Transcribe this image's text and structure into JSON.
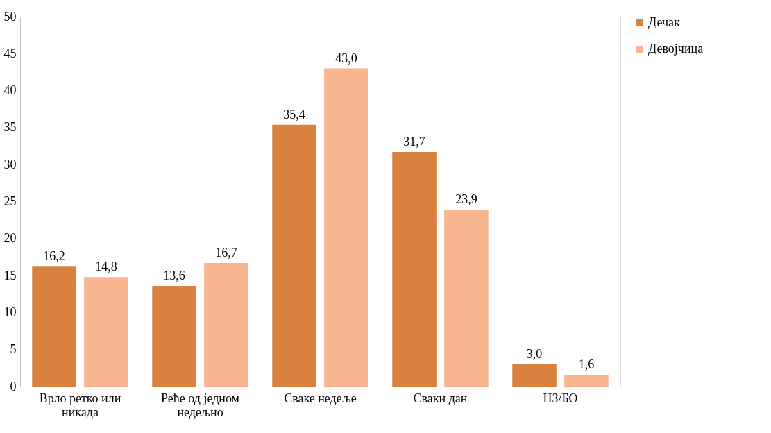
{
  "chart_data": {
    "type": "bar",
    "categories": [
      "Врло ретко или никада",
      "Реће од једном недељно",
      "Сваке недеље",
      "Сваки дан",
      "НЗ/БО"
    ],
    "series": [
      {
        "name": "Дечак",
        "color": "#d9823f",
        "values": [
          16.2,
          13.6,
          35.4,
          31.7,
          3.0
        ],
        "value_labels": [
          "16,2",
          "13,6",
          "35,4",
          "31,7",
          "3,0"
        ]
      },
      {
        "name": "Девојчица",
        "color": "#f8b590",
        "values": [
          14.8,
          16.7,
          43.0,
          23.9,
          1.6
        ],
        "value_labels": [
          "14,8",
          "16,7",
          "43,0",
          "23,9",
          "1,6"
        ]
      }
    ],
    "ylim": [
      0,
      50
    ],
    "yticks": [
      0,
      5,
      10,
      15,
      20,
      25,
      30,
      35,
      40,
      45,
      50
    ],
    "grid": false,
    "legend": "right"
  }
}
